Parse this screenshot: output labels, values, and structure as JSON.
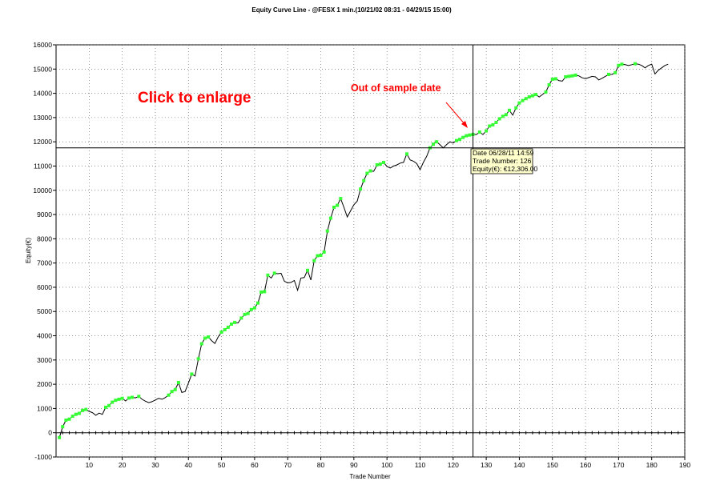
{
  "chart_data": {
    "type": "line",
    "title": "Equity Curve Line - @FESX 1 min.(10/21/02 08:31 - 04/29/15 15:00)",
    "xlabel": "Trade Number",
    "ylabel": "Equity(€)",
    "xlim": [
      0,
      190
    ],
    "ylim": [
      -1000,
      16000
    ],
    "x_ticks": [
      10,
      20,
      30,
      40,
      50,
      60,
      70,
      80,
      90,
      100,
      110,
      120,
      130,
      140,
      150,
      160,
      170,
      180,
      190
    ],
    "y_ticks": [
      -1000,
      0,
      1000,
      2000,
      3000,
      4000,
      5000,
      6000,
      7000,
      8000,
      9000,
      10000,
      11000,
      12000,
      13000,
      14000,
      15000,
      16000
    ],
    "grid": true,
    "line_color": "#000000",
    "marker_color": "#33ff33",
    "series": [
      {
        "points": [
          [
            1,
            -200
          ],
          [
            2,
            250
          ],
          [
            3,
            520
          ],
          [
            4,
            560
          ],
          [
            5,
            680
          ],
          [
            6,
            760
          ],
          [
            7,
            800
          ],
          [
            8,
            920
          ],
          [
            9,
            960
          ],
          [
            10,
            880
          ],
          [
            11,
            830
          ],
          [
            12,
            720
          ],
          [
            13,
            810
          ],
          [
            14,
            760
          ],
          [
            15,
            1050
          ],
          [
            16,
            1120
          ],
          [
            17,
            1260
          ],
          [
            18,
            1340
          ],
          [
            19,
            1380
          ],
          [
            20,
            1420
          ],
          [
            21,
            1310
          ],
          [
            22,
            1430
          ],
          [
            23,
            1460
          ],
          [
            24,
            1440
          ],
          [
            25,
            1500
          ],
          [
            26,
            1380
          ],
          [
            27,
            1300
          ],
          [
            28,
            1240
          ],
          [
            29,
            1280
          ],
          [
            30,
            1350
          ],
          [
            31,
            1420
          ],
          [
            32,
            1380
          ],
          [
            33,
            1450
          ],
          [
            34,
            1550
          ],
          [
            35,
            1700
          ],
          [
            36,
            1780
          ],
          [
            37,
            2070
          ],
          [
            38,
            1660
          ],
          [
            39,
            1700
          ],
          [
            40,
            2050
          ],
          [
            41,
            2420
          ],
          [
            42,
            2340
          ],
          [
            43,
            3050
          ],
          [
            44,
            3670
          ],
          [
            45,
            3900
          ],
          [
            46,
            3950
          ],
          [
            47,
            3800
          ],
          [
            48,
            3680
          ],
          [
            49,
            3950
          ],
          [
            50,
            4150
          ],
          [
            51,
            4250
          ],
          [
            52,
            4350
          ],
          [
            53,
            4480
          ],
          [
            54,
            4550
          ],
          [
            55,
            4530
          ],
          [
            56,
            4730
          ],
          [
            57,
            4880
          ],
          [
            58,
            4920
          ],
          [
            59,
            5080
          ],
          [
            60,
            5150
          ],
          [
            61,
            5350
          ],
          [
            62,
            5800
          ],
          [
            63,
            5820
          ],
          [
            64,
            6500
          ],
          [
            65,
            6380
          ],
          [
            66,
            6580
          ],
          [
            67,
            6560
          ],
          [
            68,
            6580
          ],
          [
            69,
            6250
          ],
          [
            70,
            6180
          ],
          [
            71,
            6200
          ],
          [
            72,
            6280
          ],
          [
            73,
            5880
          ],
          [
            74,
            6380
          ],
          [
            75,
            6400
          ],
          [
            76,
            6700
          ],
          [
            77,
            6300
          ],
          [
            78,
            7100
          ],
          [
            79,
            7300
          ],
          [
            80,
            7320
          ],
          [
            81,
            7450
          ],
          [
            82,
            8320
          ],
          [
            83,
            8850
          ],
          [
            84,
            9300
          ],
          [
            85,
            9380
          ],
          [
            86,
            9660
          ],
          [
            87,
            9300
          ],
          [
            88,
            8900
          ],
          [
            89,
            9150
          ],
          [
            90,
            9400
          ],
          [
            91,
            9550
          ],
          [
            92,
            10050
          ],
          [
            93,
            10400
          ],
          [
            94,
            10700
          ],
          [
            95,
            10800
          ],
          [
            96,
            10780
          ],
          [
            97,
            11050
          ],
          [
            98,
            11080
          ],
          [
            99,
            11150
          ],
          [
            100,
            10980
          ],
          [
            101,
            10920
          ],
          [
            102,
            11000
          ],
          [
            103,
            11050
          ],
          [
            104,
            11120
          ],
          [
            105,
            11150
          ],
          [
            106,
            11500
          ],
          [
            107,
            11250
          ],
          [
            108,
            11200
          ],
          [
            109,
            11100
          ],
          [
            110,
            10850
          ],
          [
            111,
            11150
          ],
          [
            112,
            11400
          ],
          [
            113,
            11750
          ],
          [
            114,
            11900
          ],
          [
            115,
            12000
          ],
          [
            116,
            11880
          ],
          [
            117,
            11750
          ],
          [
            118,
            11880
          ],
          [
            119,
            12000
          ],
          [
            120,
            11950
          ],
          [
            121,
            12050
          ],
          [
            122,
            12100
          ],
          [
            123,
            12180
          ],
          [
            124,
            12250
          ],
          [
            125,
            12280
          ],
          [
            126,
            12306
          ],
          [
            127,
            12300
          ],
          [
            128,
            12400
          ],
          [
            129,
            12300
          ],
          [
            130,
            12450
          ],
          [
            131,
            12650
          ],
          [
            132,
            12700
          ],
          [
            133,
            12800
          ],
          [
            134,
            12950
          ],
          [
            135,
            13050
          ],
          [
            136,
            13120
          ],
          [
            137,
            13300
          ],
          [
            138,
            13100
          ],
          [
            139,
            13400
          ],
          [
            140,
            13600
          ],
          [
            141,
            13700
          ],
          [
            142,
            13780
          ],
          [
            143,
            13850
          ],
          [
            144,
            13900
          ],
          [
            145,
            13950
          ],
          [
            146,
            13850
          ],
          [
            147,
            13950
          ],
          [
            148,
            14050
          ],
          [
            149,
            14350
          ],
          [
            150,
            14580
          ],
          [
            151,
            14600
          ],
          [
            152,
            14520
          ],
          [
            153,
            14500
          ],
          [
            154,
            14680
          ],
          [
            155,
            14700
          ],
          [
            156,
            14720
          ],
          [
            157,
            14750
          ],
          [
            158,
            14720
          ],
          [
            159,
            14640
          ],
          [
            160,
            14600
          ],
          [
            161,
            14650
          ],
          [
            162,
            14700
          ],
          [
            163,
            14680
          ],
          [
            164,
            14550
          ],
          [
            165,
            14620
          ],
          [
            166,
            14700
          ],
          [
            167,
            14780
          ],
          [
            168,
            14780
          ],
          [
            169,
            14850
          ],
          [
            170,
            15150
          ],
          [
            171,
            15200
          ],
          [
            172,
            15180
          ],
          [
            173,
            15150
          ],
          [
            174,
            15180
          ],
          [
            175,
            15220
          ],
          [
            176,
            15200
          ],
          [
            177,
            15150
          ],
          [
            178,
            15050
          ],
          [
            179,
            15150
          ],
          [
            180,
            15200
          ],
          [
            181,
            14800
          ],
          [
            182,
            14950
          ],
          [
            183,
            15050
          ],
          [
            184,
            15150
          ],
          [
            185,
            15200
          ]
        ]
      }
    ],
    "annotations": {
      "click_to_enlarge": "Click to enlarge",
      "out_of_sample": "Out of sample date",
      "crosshair_x": 126,
      "crosshair_y": 11750,
      "tooltip": {
        "line1": "Date 06/28/11 14:59",
        "line2": "Trade Number: 126",
        "line3": "Equity(€): €12,306.00"
      }
    }
  }
}
